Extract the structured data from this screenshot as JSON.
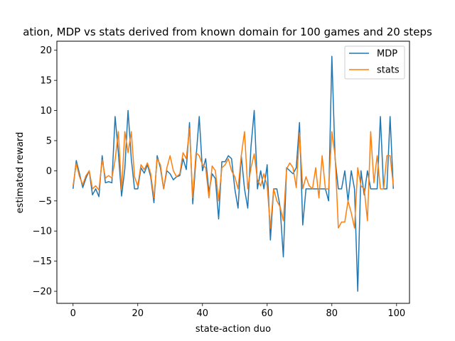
{
  "chart_data": {
    "type": "line",
    "title": "ation, MDP vs stats derived from known domain for 100 games and 20 steps",
    "xlabel": "state-action duo",
    "ylabel": "estimated reward",
    "xlim": [
      -5,
      104
    ],
    "ylim": [
      -22,
      21.5
    ],
    "xticks": [
      0,
      20,
      40,
      60,
      80,
      100
    ],
    "yticks": [
      -20,
      -15,
      -10,
      -5,
      0,
      5,
      10,
      15,
      20
    ],
    "grid": false,
    "legend_position": "top-right",
    "x": [
      0,
      1,
      2,
      3,
      4,
      5,
      6,
      7,
      8,
      9,
      10,
      11,
      12,
      13,
      14,
      15,
      16,
      17,
      18,
      19,
      20,
      21,
      22,
      23,
      24,
      25,
      26,
      27,
      28,
      29,
      30,
      31,
      32,
      33,
      34,
      35,
      36,
      37,
      38,
      39,
      40,
      41,
      42,
      43,
      44,
      45,
      46,
      47,
      48,
      49,
      50,
      51,
      52,
      53,
      54,
      55,
      56,
      57,
      58,
      59,
      60,
      61,
      62,
      63,
      64,
      65,
      66,
      67,
      68,
      69,
      70,
      71,
      72,
      73,
      74,
      75,
      76,
      77,
      78,
      79,
      80,
      81,
      82,
      83,
      84,
      85,
      86,
      87,
      88,
      89,
      90,
      91,
      92,
      93,
      94,
      95,
      96,
      97,
      98,
      99
    ],
    "series": [
      {
        "name": "MDP",
        "color": "#1f77b4",
        "values": [
          -3,
          1.7,
          -0.5,
          -2.8,
          -1.2,
          0,
          -4,
          -3,
          -4.3,
          2.5,
          -2,
          -1.8,
          -2,
          9,
          3,
          -4.2,
          0.3,
          10,
          2,
          -3,
          -3,
          0.5,
          -0.4,
          1,
          -1,
          -5.3,
          2.5,
          0.5,
          -3,
          0,
          -0.5,
          -1.5,
          -1,
          -0.8,
          2,
          0.2,
          8,
          -5.5,
          2,
          9,
          0,
          2,
          -3.5,
          -0.5,
          -1.3,
          -8,
          1.5,
          1.5,
          2.5,
          2,
          -3,
          -6.2,
          2.5,
          -3,
          -6.2,
          4,
          10,
          -3,
          0,
          -3,
          1,
          -11.5,
          -3,
          -3,
          -6,
          -14.3,
          0.5,
          0,
          -0.5,
          0.5,
          8,
          -9,
          -3,
          -3,
          -3,
          -3,
          -3,
          -3,
          -3,
          -5,
          19,
          2,
          -3,
          -3,
          0,
          -5,
          0,
          -3,
          -20,
          0,
          -4,
          0,
          -3,
          -3,
          -3,
          9,
          -3,
          -3,
          9,
          -3
        ]
      },
      {
        "name": "stats",
        "color": "#ff7f0e",
        "values": [
          -2.5,
          1.2,
          -1,
          -2.3,
          -0.8,
          0,
          -3,
          -2.5,
          -3.2,
          1.8,
          -1.2,
          -0.8,
          -1.2,
          1.8,
          6.5,
          -3.2,
          6.5,
          3,
          6.5,
          -1,
          -2.5,
          1,
          0.2,
          1.3,
          -0.5,
          -4.5,
          2,
          1,
          -3,
          0.5,
          2.5,
          0,
          -1,
          -0.5,
          3,
          2,
          7,
          -4.5,
          3,
          2.5,
          1,
          0.5,
          -4.5,
          0.8,
          0,
          -5,
          0.5,
          1,
          2,
          0,
          -1,
          -3,
          2.5,
          6.5,
          -3,
          0.5,
          2.8,
          -1.5,
          -2.5,
          -0.5,
          -2.5,
          -9.5,
          -3,
          -5,
          -6,
          -8.3,
          0.3,
          1.3,
          0.5,
          -2.8,
          6.3,
          -3,
          -1,
          -2.5,
          -3,
          0.5,
          -4.5,
          2.5,
          -3,
          -3,
          6.5,
          2.5,
          -9.5,
          -8.5,
          -8.5,
          -5,
          -7,
          -9.5,
          0.5,
          -2.5,
          -3,
          -8.3,
          6.5,
          -2,
          2.5,
          -3,
          -3,
          2.5,
          2.5,
          -2.5
        ]
      }
    ]
  }
}
